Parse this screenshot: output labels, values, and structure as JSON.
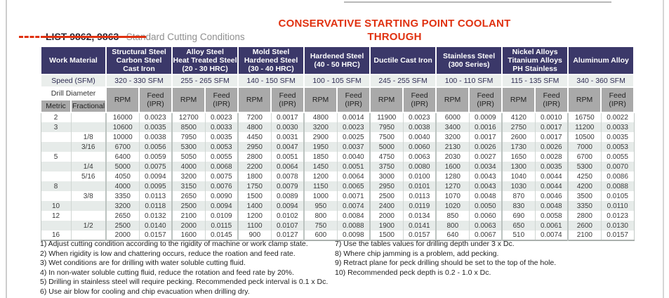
{
  "page": {
    "title_line1": "CONSERVATIVE STARTING POINT COOLANT",
    "title_line2": "THROUGH",
    "list_label": "LIST 9862, 9863",
    "subtitle": "Standard Cutting Conditions"
  },
  "colors": {
    "accent_red": "#e03110",
    "header_navy": "#3b3869",
    "subheader_gray": "#a9a9a9",
    "speed_row_bg": "#eaeeec",
    "row_tint": "#e6ebe9"
  },
  "table": {
    "work_material_label": "Work Material",
    "speed_label": "Speed (SFM)",
    "drill_diameter_label": "Drill Diameter",
    "metric_label": "Metric",
    "fractional_label": "Fractional",
    "rpm_label": "RPM",
    "feed_label_lines": [
      "Feed",
      "(IPR)"
    ],
    "materials": [
      {
        "name_lines": [
          "Structural Steel",
          "Carbon Steel",
          "Cast Iron"
        ],
        "speed": "320 - 330 SFM"
      },
      {
        "name_lines": [
          "Alloy Steel",
          "Heat Treated Steel",
          "(20 - 30 HRC)"
        ],
        "speed": "255 - 265 SFM"
      },
      {
        "name_lines": [
          "Mold Steel",
          "Hardened Steel",
          "(30 - 40 HRC)"
        ],
        "speed": "140 - 150 SFM"
      },
      {
        "name_lines": [
          "Hardened Steel",
          "(40 - 50 HRC)"
        ],
        "speed": "100 - 105 SFM"
      },
      {
        "name_lines": [
          "Ductile Cast Iron"
        ],
        "speed": "245 - 255 SFM"
      },
      {
        "name_lines": [
          "Stainless Steel",
          "(300 Series)"
        ],
        "speed": "100 - 110 SFM"
      },
      {
        "name_lines": [
          "Nickel Alloys",
          "Titanium Alloys",
          "PH Stainless"
        ],
        "speed": "115 - 135 SFM"
      },
      {
        "name_lines": [
          "Aluminum Alloy"
        ],
        "speed": "340 - 360 SFM"
      }
    ],
    "rows": [
      {
        "metric": "2",
        "fractional": "",
        "values": [
          "16000",
          "0.0023",
          "12700",
          "0.0023",
          "7200",
          "0.0017",
          "4800",
          "0.0014",
          "11900",
          "0.0023",
          "6000",
          "0.0009",
          "4120",
          "0.0010",
          "16750",
          "0.0022"
        ]
      },
      {
        "metric": "3",
        "fractional": "",
        "values": [
          "10600",
          "0.0035",
          "8500",
          "0.0033",
          "4800",
          "0.0030",
          "3200",
          "0.0023",
          "7950",
          "0.0038",
          "3400",
          "0.0016",
          "2750",
          "0.0017",
          "11200",
          "0.0033"
        ]
      },
      {
        "metric": "",
        "fractional": "1/8",
        "values": [
          "10000",
          "0.0038",
          "7950",
          "0.0035",
          "4450",
          "0.0031",
          "2900",
          "0.0025",
          "7500",
          "0.0040",
          "3200",
          "0.0017",
          "2600",
          "0.0017",
          "10500",
          "0.0035"
        ]
      },
      {
        "metric": "",
        "fractional": "3/16",
        "values": [
          "6700",
          "0.0056",
          "5300",
          "0.0053",
          "2950",
          "0.0047",
          "1950",
          "0.0037",
          "5000",
          "0.0060",
          "2130",
          "0.0026",
          "1730",
          "0.0026",
          "7000",
          "0.0053"
        ]
      },
      {
        "metric": "5",
        "fractional": "",
        "values": [
          "6400",
          "0.0059",
          "5050",
          "0.0055",
          "2800",
          "0.0051",
          "1850",
          "0.0040",
          "4750",
          "0.0063",
          "2030",
          "0.0027",
          "1650",
          "0.0028",
          "6700",
          "0.0055"
        ]
      },
      {
        "metric": "",
        "fractional": "1/4",
        "values": [
          "5000",
          "0.0075",
          "4000",
          "0.0068",
          "2200",
          "0.0064",
          "1450",
          "0.0051",
          "3750",
          "0.0080",
          "1600",
          "0.0034",
          "1300",
          "0.0035",
          "5300",
          "0.0070"
        ]
      },
      {
        "metric": "",
        "fractional": "5/16",
        "values": [
          "4050",
          "0.0094",
          "3200",
          "0.0075",
          "1800",
          "0.0078",
          "1200",
          "0.0064",
          "3000",
          "0.0100",
          "1280",
          "0.0043",
          "1040",
          "0.0044",
          "4250",
          "0.0086"
        ]
      },
      {
        "metric": "8",
        "fractional": "",
        "values": [
          "4000",
          "0.0095",
          "3150",
          "0.0076",
          "1750",
          "0.0079",
          "1150",
          "0.0065",
          "2950",
          "0.0101",
          "1270",
          "0.0043",
          "1030",
          "0.0044",
          "4200",
          "0.0088"
        ]
      },
      {
        "metric": "",
        "fractional": "3/8",
        "values": [
          "3350",
          "0.0113",
          "2650",
          "0.0090",
          "1500",
          "0.0089",
          "1000",
          "0.0071",
          "2500",
          "0.0113",
          "1070",
          "0.0048",
          "870",
          "0.0046",
          "3500",
          "0.0105"
        ]
      },
      {
        "metric": "10",
        "fractional": "",
        "values": [
          "3200",
          "0.0118",
          "2500",
          "0.0094",
          "1400",
          "0.0094",
          "950",
          "0.0074",
          "2400",
          "0.0119",
          "1020",
          "0.0050",
          "830",
          "0.0048",
          "3350",
          "0.0110"
        ]
      },
      {
        "metric": "12",
        "fractional": "",
        "values": [
          "2650",
          "0.0132",
          "2100",
          "0.0109",
          "1200",
          "0.0102",
          "800",
          "0.0084",
          "2000",
          "0.0134",
          "850",
          "0.0060",
          "690",
          "0.0058",
          "2800",
          "0.0123"
        ]
      },
      {
        "metric": "",
        "fractional": "1/2",
        "values": [
          "2500",
          "0.0140",
          "2000",
          "0.0115",
          "1100",
          "0.0107",
          "750",
          "0.0088",
          "1900",
          "0.0141",
          "800",
          "0.0063",
          "650",
          "0.0061",
          "2600",
          "0.0130"
        ]
      },
      {
        "metric": "16",
        "fractional": "",
        "values": [
          "2000",
          "0.0157",
          "1600",
          "0.0145",
          "900",
          "0.0127",
          "600",
          "0.0098",
          "1500",
          "0.0157",
          "640",
          "0.0067",
          "510",
          "0.0074",
          "2100",
          "0.0157"
        ]
      }
    ]
  },
  "footnotes": {
    "left": [
      "1) Adjust cutting condition according to the rigidity of machine or work clamp state.",
      "2) When rigidity is low and chattering occurs, reduce the roation and feed rate.",
      "3) Wet conditions are for drilling with water soluble cutting fluid.",
      "4) In non-water soluble cutting fluid, reduce the rotation and feed rate by 20%.",
      "5) Drilling in stainless steel will require pecking. Recommended peck interval is 0.1 x Dc.",
      "6) Use air blow for cooling and chip evacuation when drilling dry."
    ],
    "right": [
      "7) Use the tables values for drilling depth under 3 x Dc.",
      "8) Where chip jamming is a problem, add pecking.",
      "9) Retract plane for peck drilling should be set to the top of the hole.",
      "10) Recommended peck depth is 0.2 - 1.0 x Dc."
    ]
  }
}
